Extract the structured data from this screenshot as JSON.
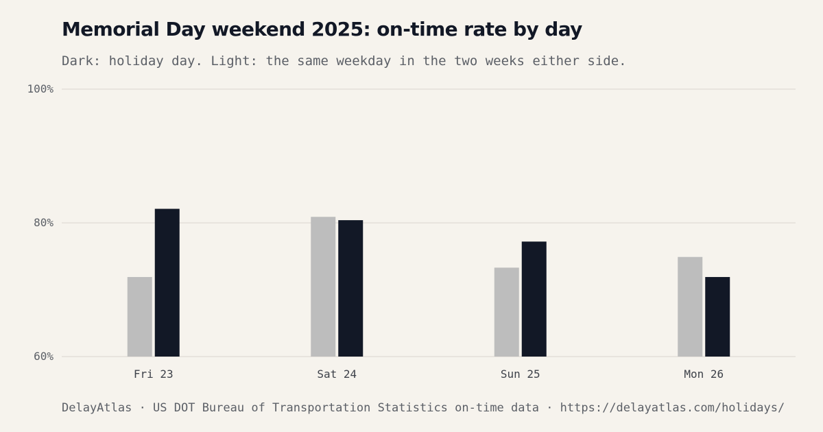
{
  "header": {
    "title": "Memorial Day weekend 2025: on-time rate by day",
    "subtitle": "Dark: holiday day. Light: the same weekday in the two weeks either side."
  },
  "footer": {
    "text": "DelayAtlas · US DOT Bureau of Transportation Statistics on-time data · https://delayatlas.com/holidays/"
  },
  "colors": {
    "background": "#f6f3ed",
    "holiday": "#121826",
    "baseline": "#bdbdbd",
    "grid": "#e3e0d9"
  },
  "chart_data": {
    "type": "bar",
    "categories": [
      "Fri 23",
      "Sat 24",
      "Sun 25",
      "Mon 26"
    ],
    "series": [
      {
        "values": [
          71.9,
          80.9,
          73.3,
          74.9
        ]
      },
      {
        "values": [
          82.1,
          80.4,
          77.2,
          71.9
        ]
      }
    ],
    "ylim": [
      60,
      100
    ],
    "yticks": [
      60,
      80,
      100
    ],
    "ytick_labels": [
      "60%",
      "80%",
      "100%"
    ],
    "grid": true
  }
}
